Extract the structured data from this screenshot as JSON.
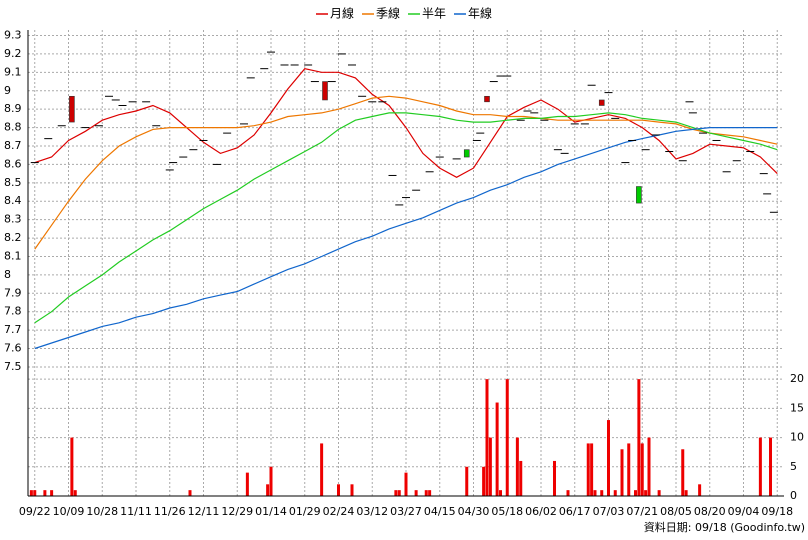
{
  "chart_data": [
    {
      "type": "candlestick",
      "xlim": [
        -2,
        222
      ],
      "ylim": [
        7.44,
        9.33
      ],
      "yticks": [
        7.5,
        7.6,
        7.7,
        7.8,
        7.9,
        8,
        8.1,
        8.2,
        8.3,
        8.4,
        8.5,
        8.6,
        8.7,
        8.8,
        8.9,
        9,
        9.1,
        9.2,
        9.3
      ],
      "grid": true,
      "candles": {
        "x": [
          0,
          4,
          8,
          11,
          15,
          19,
          22,
          24,
          26,
          29,
          33,
          36,
          40,
          41,
          44,
          47,
          50,
          54,
          57,
          62,
          64,
          68,
          70,
          74,
          77,
          81,
          83,
          86,
          88,
          91,
          94,
          97,
          100,
          103,
          106,
          108,
          110,
          113,
          117,
          120,
          125,
          128,
          131,
          132,
          134,
          136,
          138,
          140,
          144,
          146,
          148,
          151,
          155,
          157,
          160,
          163,
          165,
          168,
          170,
          172,
          175,
          177,
          179,
          181,
          184,
          188,
          192,
          194,
          195,
          198,
          202,
          205,
          208,
          212,
          216,
          217,
          219
        ],
        "open": [
          8.61,
          8.74,
          8.81,
          8.83,
          8.8,
          8.81,
          8.97,
          8.95,
          8.92,
          8.94,
          8.94,
          8.81,
          8.57,
          8.61,
          8.64,
          8.68,
          8.73,
          8.6,
          8.77,
          8.82,
          9.07,
          9.12,
          9.21,
          9.14,
          9.14,
          9.14,
          9.05,
          8.95,
          9.05,
          9.2,
          9.14,
          8.97,
          8.94,
          8.94,
          8.54,
          8.38,
          8.42,
          8.46,
          8.56,
          8.64,
          8.63,
          8.68,
          8.73,
          8.77,
          8.94,
          9.05,
          9.08,
          9.08,
          8.84,
          8.89,
          8.88,
          8.84,
          8.68,
          8.66,
          8.82,
          8.82,
          9.03,
          8.92,
          8.99,
          8.85,
          8.61,
          8.73,
          8.48,
          8.68,
          8.76,
          8.67,
          8.62,
          8.94,
          8.88,
          8.77,
          8.73,
          8.56,
          8.62,
          8.67,
          8.55,
          8.44,
          8.34
        ],
        "close": [
          8.61,
          8.74,
          8.81,
          8.97,
          8.8,
          8.81,
          8.97,
          8.95,
          8.92,
          8.94,
          8.94,
          8.81,
          8.57,
          8.61,
          8.64,
          8.68,
          8.73,
          8.6,
          8.77,
          8.82,
          9.07,
          9.12,
          9.21,
          9.14,
          9.14,
          9.14,
          9.05,
          9.05,
          9.05,
          9.2,
          9.14,
          8.97,
          8.94,
          8.94,
          8.54,
          8.38,
          8.42,
          8.46,
          8.56,
          8.64,
          8.63,
          8.64,
          8.73,
          8.77,
          8.97,
          9.05,
          9.08,
          9.08,
          8.84,
          8.89,
          8.88,
          8.84,
          8.68,
          8.66,
          8.82,
          8.82,
          9.03,
          8.95,
          8.99,
          8.85,
          8.61,
          8.73,
          8.39,
          8.68,
          8.76,
          8.67,
          8.62,
          8.94,
          8.88,
          8.77,
          8.73,
          8.56,
          8.62,
          8.67,
          8.55,
          8.44,
          8.34
        ],
        "up_color": "#cc0000",
        "down_color": "#00cc00",
        "flat_color": "#000000"
      },
      "x": [
        0,
        5,
        10,
        15,
        20,
        25,
        30,
        35,
        40,
        45,
        50,
        55,
        60,
        65,
        70,
        75,
        80,
        85,
        90,
        95,
        100,
        105,
        110,
        115,
        120,
        125,
        130,
        135,
        140,
        145,
        150,
        155,
        160,
        165,
        170,
        175,
        180,
        185,
        190,
        195,
        200,
        205,
        210,
        215,
        220
      ],
      "series": [
        {
          "name": "月線",
          "color": "#dd0000",
          "values": [
            8.61,
            8.64,
            8.73,
            8.78,
            8.84,
            8.87,
            8.89,
            8.92,
            8.88,
            8.8,
            8.72,
            8.66,
            8.69,
            8.76,
            8.88,
            9.01,
            9.12,
            9.1,
            9.1,
            9.07,
            8.98,
            8.92,
            8.8,
            8.66,
            8.58,
            8.53,
            8.58,
            8.72,
            8.86,
            8.91,
            8.95,
            8.9,
            8.83,
            8.85,
            8.87,
            8.85,
            8.8,
            8.73,
            8.63,
            8.66,
            8.71,
            8.7,
            8.69,
            8.64,
            8.55
          ]
        },
        {
          "name": "季線",
          "color": "#ee7700",
          "values": [
            8.14,
            8.27,
            8.4,
            8.52,
            8.62,
            8.7,
            8.75,
            8.79,
            8.8,
            8.8,
            8.8,
            8.8,
            8.8,
            8.81,
            8.83,
            8.86,
            8.87,
            8.88,
            8.9,
            8.93,
            8.96,
            8.97,
            8.96,
            8.94,
            8.92,
            8.89,
            8.87,
            8.87,
            8.86,
            8.86,
            8.85,
            8.84,
            8.84,
            8.84,
            8.84,
            8.84,
            8.84,
            8.83,
            8.82,
            8.79,
            8.77,
            8.76,
            8.75,
            8.73,
            8.71
          ]
        },
        {
          "name": "半年",
          "color": "#22cc22",
          "values": [
            7.74,
            7.8,
            7.88,
            7.94,
            8.0,
            8.07,
            8.13,
            8.19,
            8.24,
            8.3,
            8.36,
            8.41,
            8.46,
            8.52,
            8.57,
            8.62,
            8.67,
            8.72,
            8.79,
            8.84,
            8.86,
            8.88,
            8.88,
            8.87,
            8.86,
            8.84,
            8.83,
            8.83,
            8.84,
            8.85,
            8.85,
            8.86,
            8.86,
            8.87,
            8.88,
            8.87,
            8.85,
            8.84,
            8.83,
            8.8,
            8.77,
            8.75,
            8.73,
            8.71,
            8.68
          ]
        },
        {
          "name": "年線",
          "color": "#1166cc",
          "values": [
            7.6,
            7.63,
            7.66,
            7.69,
            7.72,
            7.74,
            7.77,
            7.79,
            7.82,
            7.84,
            7.87,
            7.89,
            7.91,
            7.95,
            7.99,
            8.03,
            8.06,
            8.1,
            8.14,
            8.18,
            8.21,
            8.25,
            8.28,
            8.31,
            8.35,
            8.39,
            8.42,
            8.46,
            8.49,
            8.53,
            8.56,
            8.6,
            8.63,
            8.66,
            8.69,
            8.72,
            8.74,
            8.76,
            8.78,
            8.79,
            8.8,
            8.8,
            8.8,
            8.8,
            8.8
          ]
        }
      ]
    },
    {
      "type": "bar",
      "color": "#ee0000",
      "xlim": [
        -2,
        222
      ],
      "ylim": [
        0,
        20.2
      ],
      "yticks": [
        0,
        5,
        10,
        15,
        20
      ],
      "grid": true,
      "xticks": [
        {
          "value": 0,
          "label": "09/22"
        },
        {
          "value": 10,
          "label": "10/09"
        },
        {
          "value": 20,
          "label": "10/28"
        },
        {
          "value": 30,
          "label": "11/11"
        },
        {
          "value": 40,
          "label": "11/26"
        },
        {
          "value": 50,
          "label": "12/11"
        },
        {
          "value": 60,
          "label": "12/29"
        },
        {
          "value": 70,
          "label": "01/14"
        },
        {
          "value": 80,
          "label": "01/29"
        },
        {
          "value": 90,
          "label": "02/24"
        },
        {
          "value": 100,
          "label": "03/12"
        },
        {
          "value": 110,
          "label": "03/27"
        },
        {
          "value": 120,
          "label": "04/15"
        },
        {
          "value": 130,
          "label": "04/30"
        },
        {
          "value": 140,
          "label": "05/18"
        },
        {
          "value": 150,
          "label": "06/02"
        },
        {
          "value": 160,
          "label": "06/17"
        },
        {
          "value": 170,
          "label": "07/03"
        },
        {
          "value": 180,
          "label": "07/21"
        },
        {
          "value": 190,
          "label": "08/05"
        },
        {
          "value": 200,
          "label": "08/20"
        },
        {
          "value": 210,
          "label": "09/04"
        },
        {
          "value": 220,
          "label": "09/18"
        }
      ],
      "x": [
        -1,
        0,
        3,
        5,
        11,
        12,
        46,
        63,
        69,
        70,
        85,
        90,
        94,
        107,
        108,
        110,
        113,
        116,
        117,
        128,
        133,
        134,
        135,
        137,
        138,
        140,
        143,
        144,
        154,
        158,
        164,
        165,
        166,
        168,
        170,
        172,
        174,
        176,
        178,
        179,
        180,
        181,
        182,
        185,
        192,
        193,
        197,
        215,
        218
      ],
      "values": [
        1,
        1,
        1,
        1,
        10,
        1,
        1,
        4,
        2,
        5,
        9,
        2,
        2,
        1,
        1,
        4,
        1,
        1,
        1,
        5,
        5,
        20,
        10,
        16,
        1,
        20,
        10,
        6,
        6,
        1,
        9,
        9,
        1,
        1,
        13,
        1,
        8,
        9,
        1,
        20,
        9,
        1,
        10,
        1,
        8,
        1,
        2,
        10,
        10
      ]
    }
  ],
  "footer": "資料日期: 09/18  (Goodinfo.tw)"
}
